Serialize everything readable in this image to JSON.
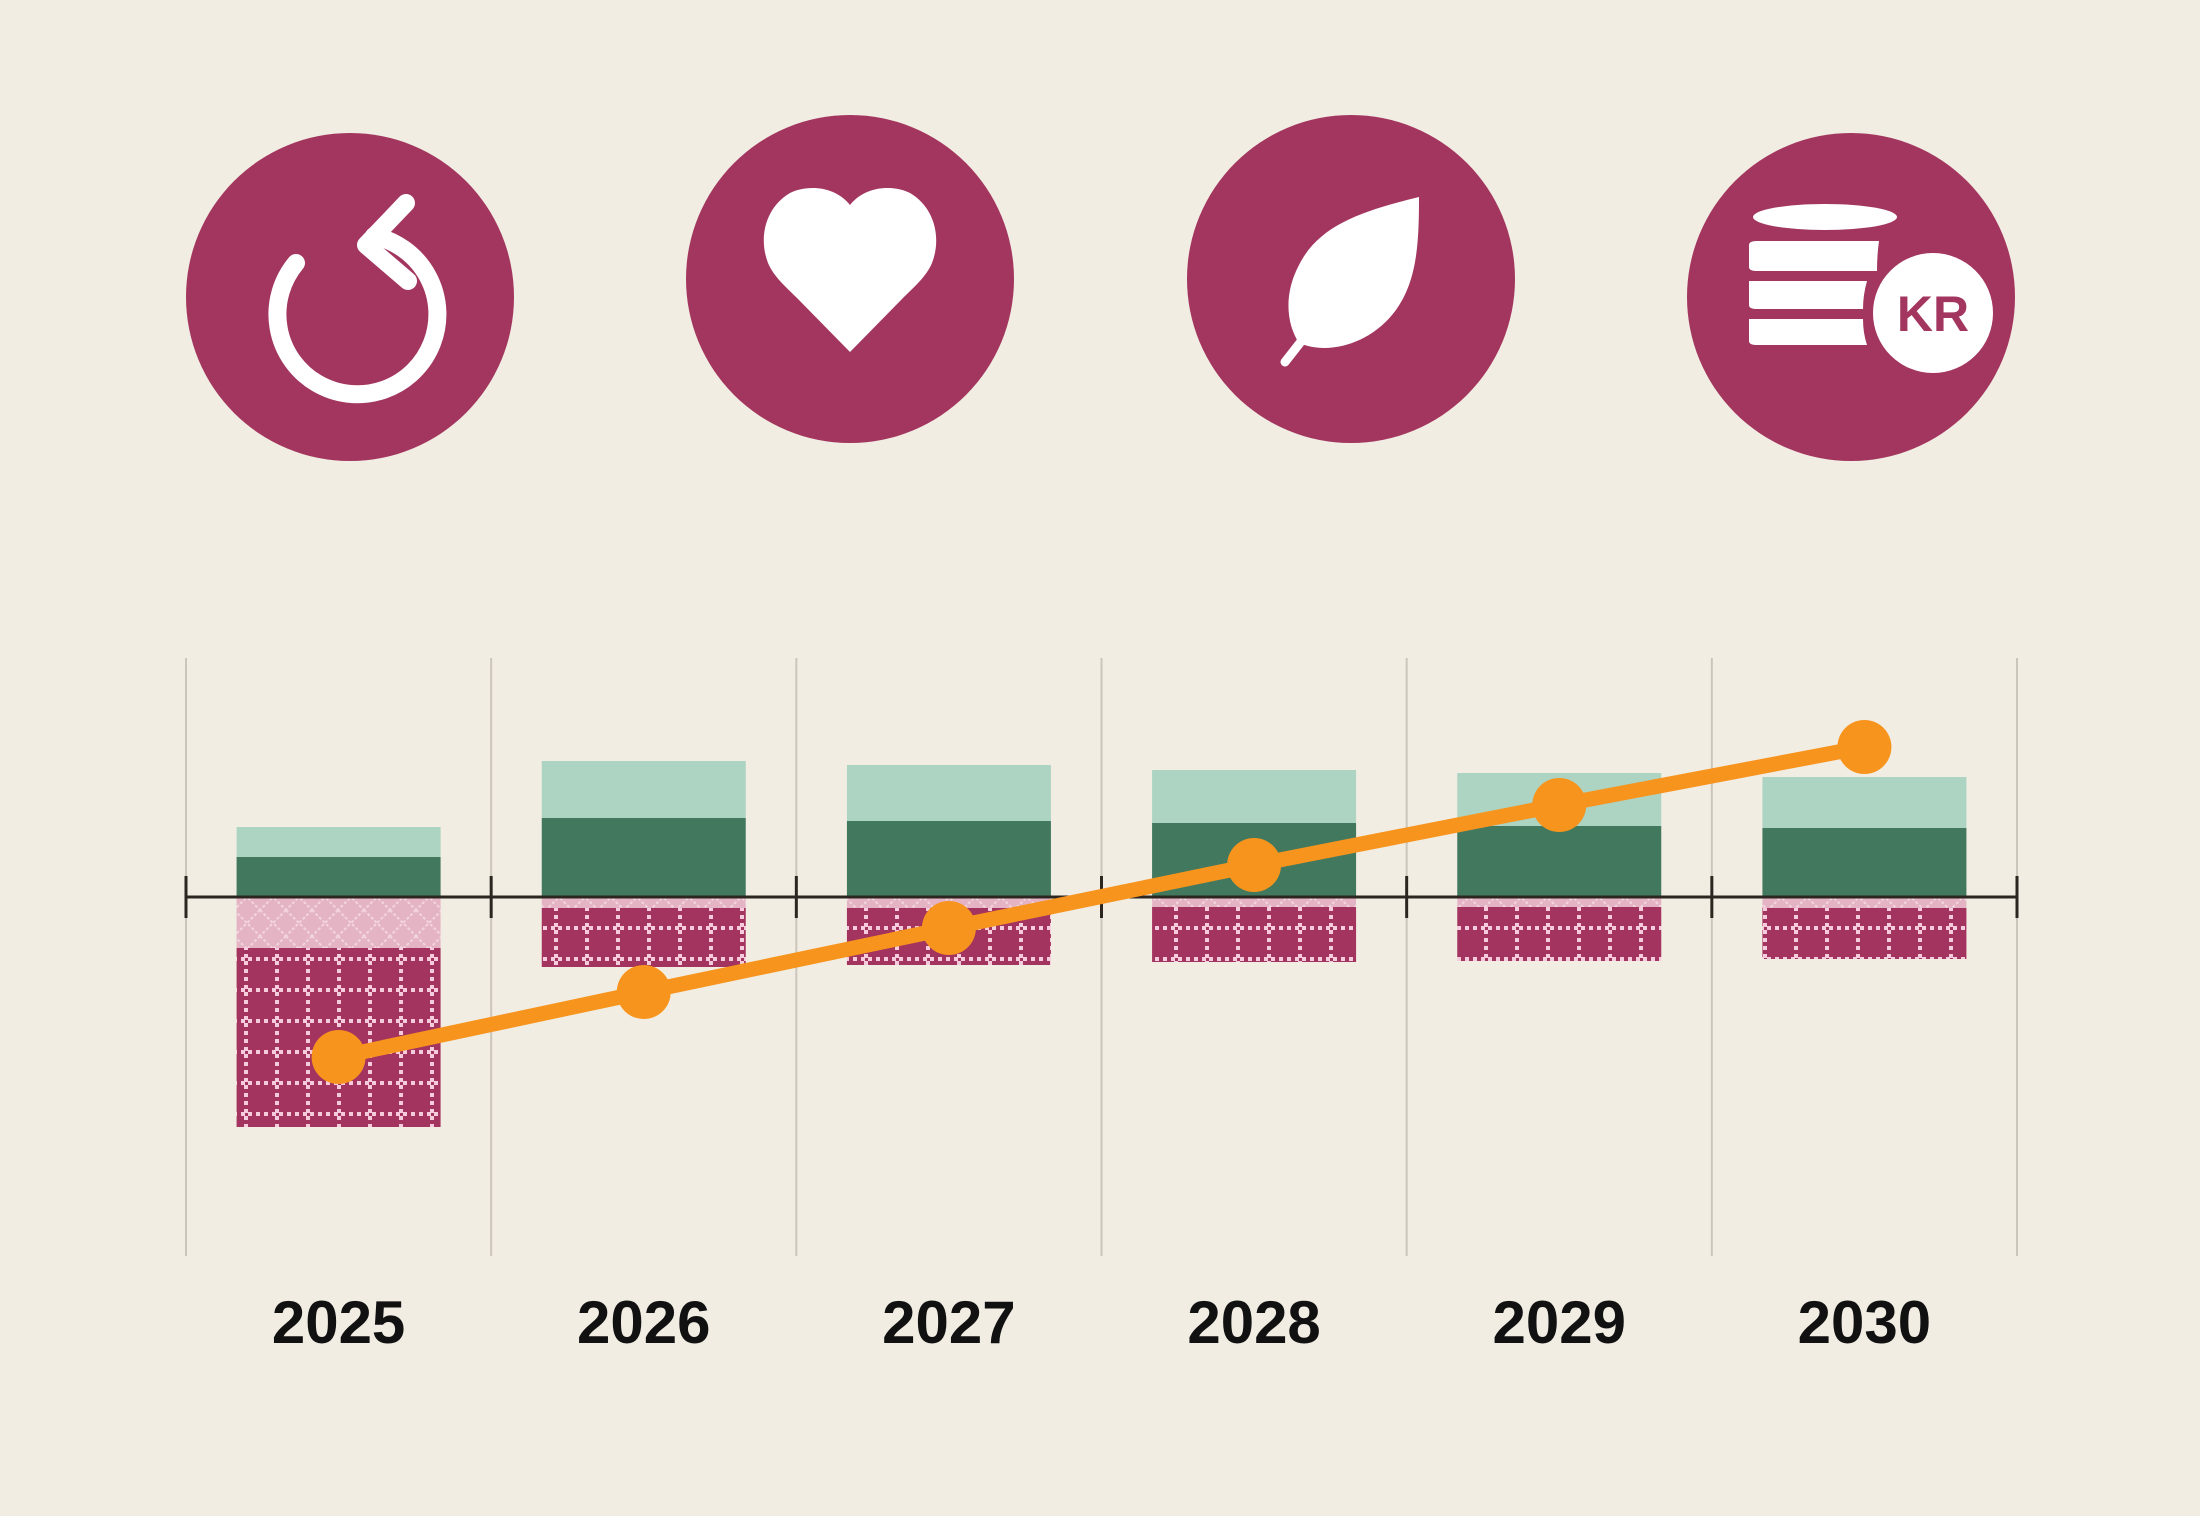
{
  "icons": [
    {
      "name": "refresh-icon"
    },
    {
      "name": "heart-icon"
    },
    {
      "name": "leaf-icon"
    },
    {
      "name": "coins-kr-icon",
      "text": "KR"
    }
  ],
  "colors": {
    "background": "#f2ede3",
    "icon_circle": "#a3365f",
    "positive_dark": "#41785e",
    "positive_light": "#add3c2",
    "negative_light": "#e4b4c4",
    "negative_dark": "#a3335f",
    "line": "#f7941d",
    "axis": "#2b2620",
    "grid": "#cbc5ba"
  },
  "chart_data": {
    "type": "bar",
    "title": "",
    "xlabel": "",
    "ylabel": "",
    "categories": [
      "2025",
      "2026",
      "2027",
      "2028",
      "2029",
      "2030"
    ],
    "ylim": [
      -24,
      22
    ],
    "grid": true,
    "legend": "none",
    "series": [
      {
        "name": "positive-dark",
        "kind": "stacked-bar",
        "values": [
          4.0,
          7.9,
          7.6,
          7.4,
          7.1,
          6.9
        ]
      },
      {
        "name": "positive-light",
        "kind": "stacked-bar",
        "values": [
          3.0,
          5.7,
          5.6,
          5.3,
          5.3,
          5.1
        ]
      },
      {
        "name": "negative-light",
        "kind": "stacked-bar",
        "values": [
          -5.1,
          -1.1,
          -1.1,
          -1.0,
          -1.0,
          -1.1
        ]
      },
      {
        "name": "negative-dark",
        "kind": "stacked-bar",
        "values": [
          -17.9,
          -5.9,
          -5.7,
          -5.5,
          -5.4,
          -5.1
        ]
      },
      {
        "name": "net",
        "kind": "line",
        "values": [
          -16.0,
          -9.5,
          -3.1,
          3.2,
          9.2,
          15.0
        ]
      }
    ]
  }
}
